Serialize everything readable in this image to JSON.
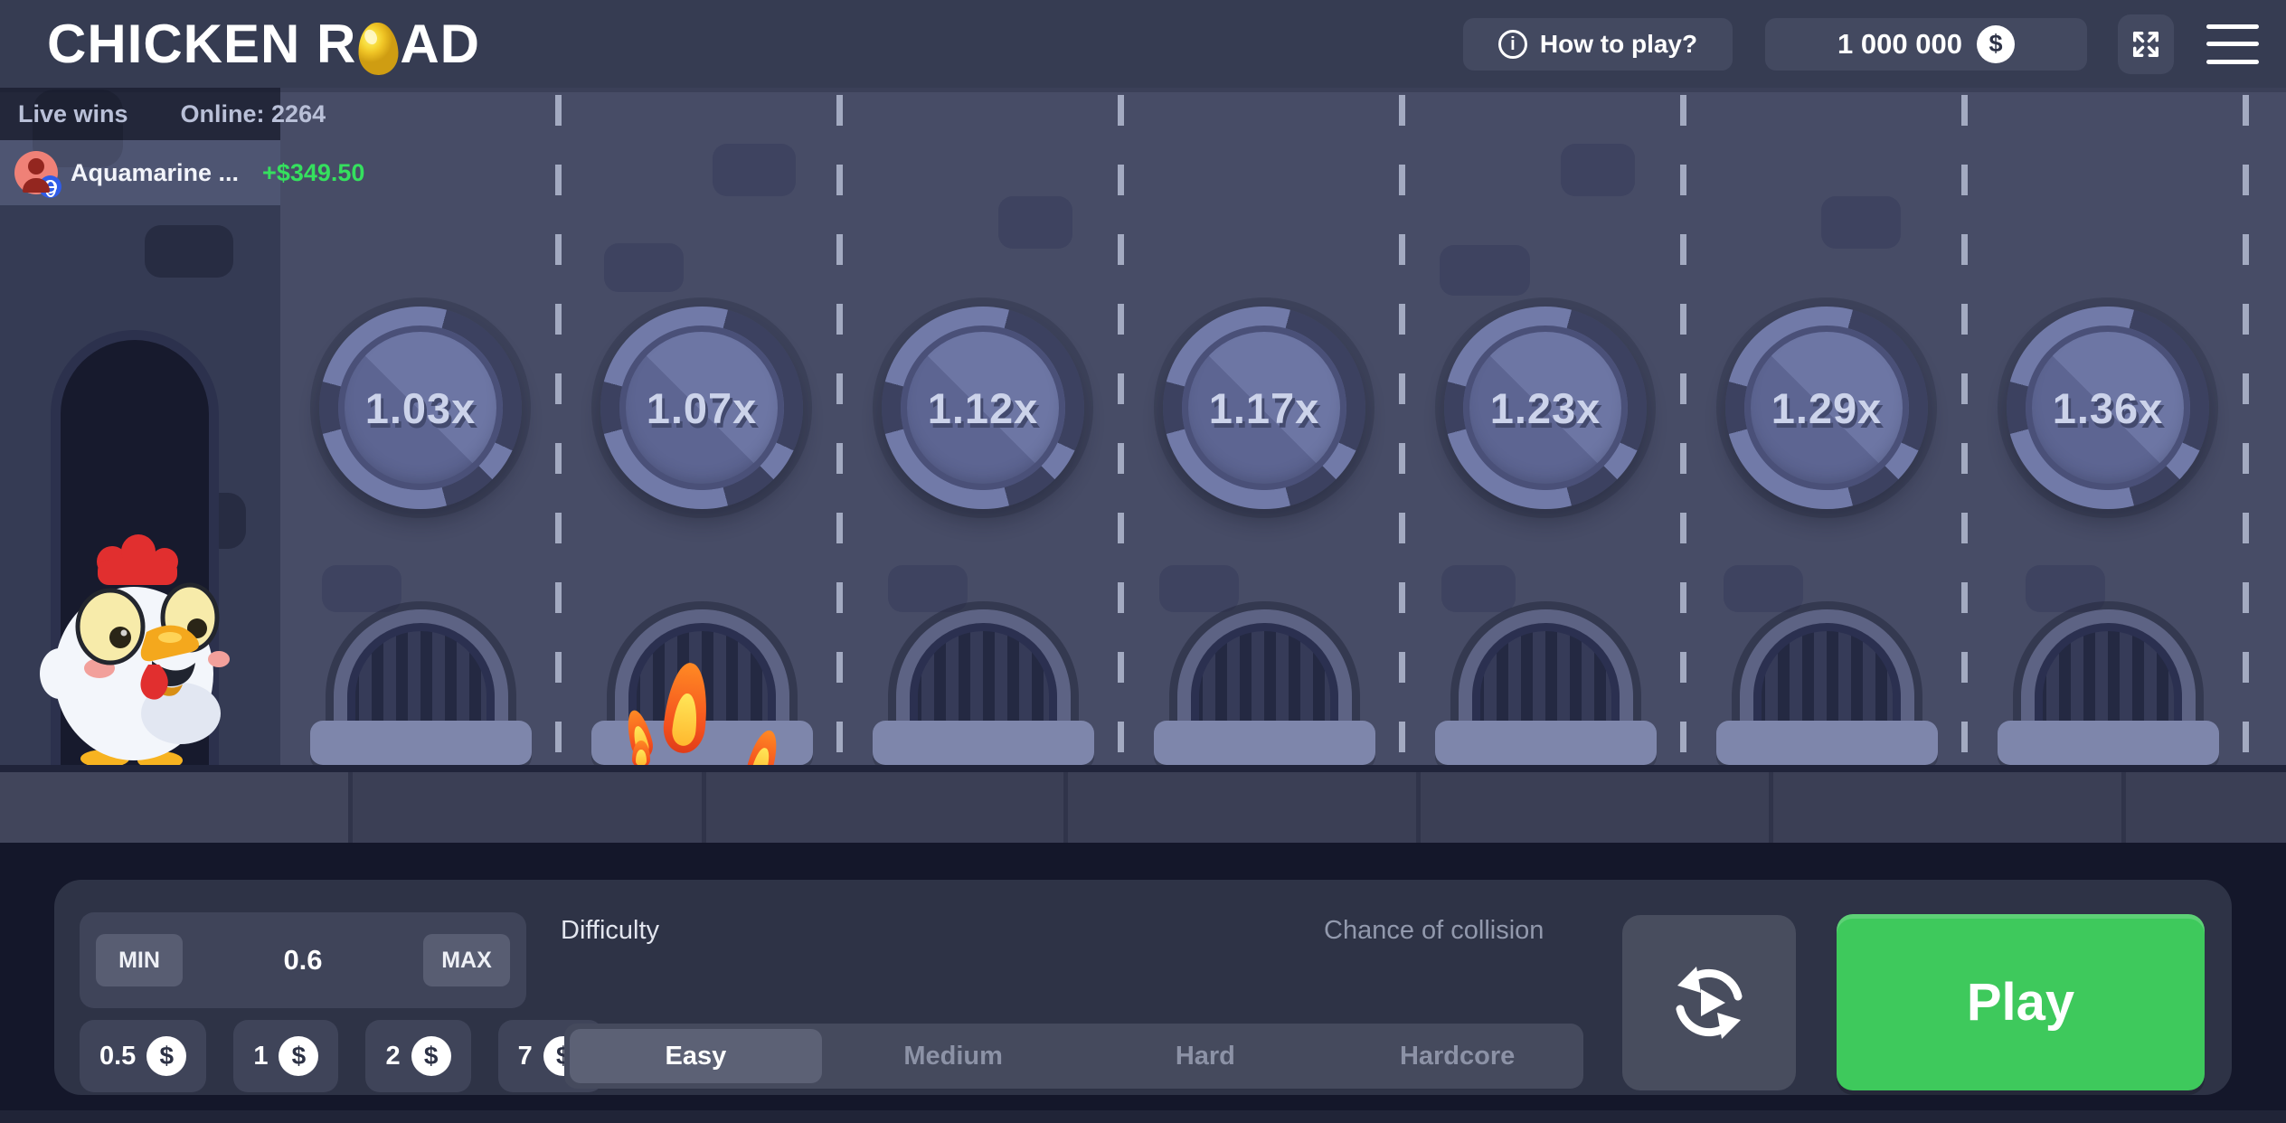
{
  "topbar": {
    "logo_prefix": "CHICKEN R",
    "logo_suffix": "AD",
    "how_to_play_label": "How to play?",
    "balance_value": "1 000 000",
    "currency_symbol": "$"
  },
  "live_bar": {
    "title": "Live wins",
    "online_text": "Online: 2264"
  },
  "live_wins": [
    {
      "player": "Aquamarine ...",
      "amount": "+$349.50"
    }
  ],
  "game": {
    "multipliers": [
      "1.03x",
      "1.07x",
      "1.12x",
      "1.17x",
      "1.23x",
      "1.29x",
      "1.36x"
    ],
    "burning_lane_index": 1
  },
  "controls": {
    "bet": {
      "min_label": "MIN",
      "max_label": "MAX",
      "value": "0.6"
    },
    "chips": [
      {
        "label": "0.5"
      },
      {
        "label": "1"
      },
      {
        "label": "2"
      },
      {
        "label": "7"
      }
    ],
    "difficulty_label": "Difficulty",
    "chance_label": "Chance of collision",
    "difficulties": [
      "Easy",
      "Medium",
      "Hard",
      "Hardcore"
    ],
    "selected_difficulty": "Easy",
    "play_label": "Play"
  },
  "colors": {
    "play_green": "#3ec95c",
    "win_green": "#35e05e",
    "online_dot": "#3fd763",
    "road": "#474c66",
    "panel": "#2e3346",
    "topbar": "#363c52"
  }
}
